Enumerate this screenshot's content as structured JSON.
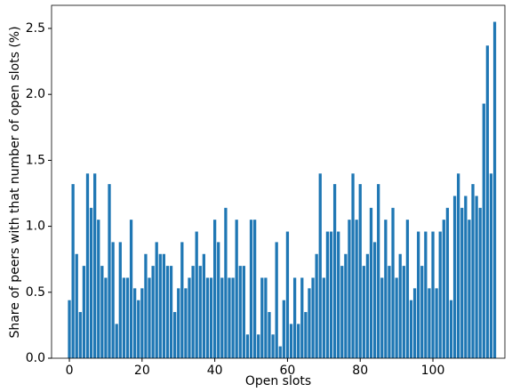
{
  "chart_data": {
    "type": "bar",
    "xlabel": "Open slots",
    "ylabel": "Share of peers with that number of open slots (%)",
    "color": "#1f77b4",
    "x": [
      0,
      1,
      2,
      3,
      4,
      5,
      6,
      7,
      8,
      9,
      10,
      11,
      12,
      13,
      14,
      15,
      16,
      17,
      18,
      19,
      20,
      21,
      22,
      23,
      24,
      25,
      26,
      27,
      28,
      29,
      30,
      31,
      32,
      33,
      34,
      35,
      36,
      37,
      38,
      39,
      40,
      41,
      42,
      43,
      44,
      45,
      46,
      47,
      48,
      49,
      50,
      51,
      52,
      53,
      54,
      55,
      56,
      57,
      58,
      59,
      60,
      61,
      62,
      63,
      64,
      65,
      66,
      67,
      68,
      69,
      70,
      71,
      72,
      73,
      74,
      75,
      76,
      77,
      78,
      79,
      80,
      81,
      82,
      83,
      84,
      85,
      86,
      87,
      88,
      89,
      90,
      91,
      92,
      93,
      94,
      95,
      96,
      97,
      98,
      99,
      100,
      101,
      102,
      103,
      104,
      105,
      106,
      107,
      108,
      109,
      110,
      111,
      112,
      113,
      114,
      115,
      116,
      117
    ],
    "values": [
      0.44,
      1.32,
      0.79,
      0.35,
      0.7,
      1.4,
      1.14,
      1.4,
      1.05,
      0.7,
      0.61,
      1.32,
      0.88,
      0.26,
      0.88,
      0.61,
      0.61,
      1.05,
      0.53,
      0.44,
      0.53,
      0.79,
      0.61,
      0.7,
      0.88,
      0.79,
      0.79,
      0.7,
      0.7,
      0.35,
      0.53,
      0.88,
      0.53,
      0.61,
      0.7,
      0.96,
      0.7,
      0.79,
      0.61,
      0.61,
      1.05,
      0.88,
      0.61,
      1.14,
      0.61,
      0.61,
      1.05,
      0.7,
      0.7,
      0.18,
      1.05,
      1.05,
      0.18,
      0.61,
      0.61,
      0.35,
      0.18,
      0.88,
      0.09,
      0.44,
      0.96,
      0.26,
      0.61,
      0.26,
      0.61,
      0.35,
      0.53,
      0.61,
      0.79,
      1.4,
      0.61,
      0.96,
      0.96,
      1.32,
      0.96,
      0.7,
      0.79,
      1.05,
      1.4,
      1.05,
      1.32,
      0.7,
      0.79,
      1.14,
      0.88,
      1.32,
      0.61,
      1.05,
      0.7,
      1.14,
      0.61,
      0.79,
      0.7,
      1.05,
      0.44,
      0.53,
      0.96,
      0.7,
      0.96,
      0.53,
      0.96,
      0.53,
      0.96,
      1.05,
      1.14,
      0.44,
      1.23,
      1.4,
      1.14,
      1.23,
      1.05,
      1.32,
      1.23,
      1.14,
      1.93,
      2.37,
      1.4,
      2.55
    ],
    "xlim": [
      -4.9,
      119.8
    ],
    "xticks": [
      0,
      20,
      40,
      60,
      80,
      100
    ],
    "ylim": [
      0,
      2.675
    ],
    "yticks": [
      {
        "value": 0,
        "label": "0.0"
      },
      {
        "value": 0.5,
        "label": "0.5"
      },
      {
        "value": 1,
        "label": "1.0"
      },
      {
        "value": 1.5,
        "label": "1.5"
      },
      {
        "value": 2,
        "label": "2.0"
      },
      {
        "value": 2.5,
        "label": "2.5"
      }
    ],
    "grid": false
  }
}
